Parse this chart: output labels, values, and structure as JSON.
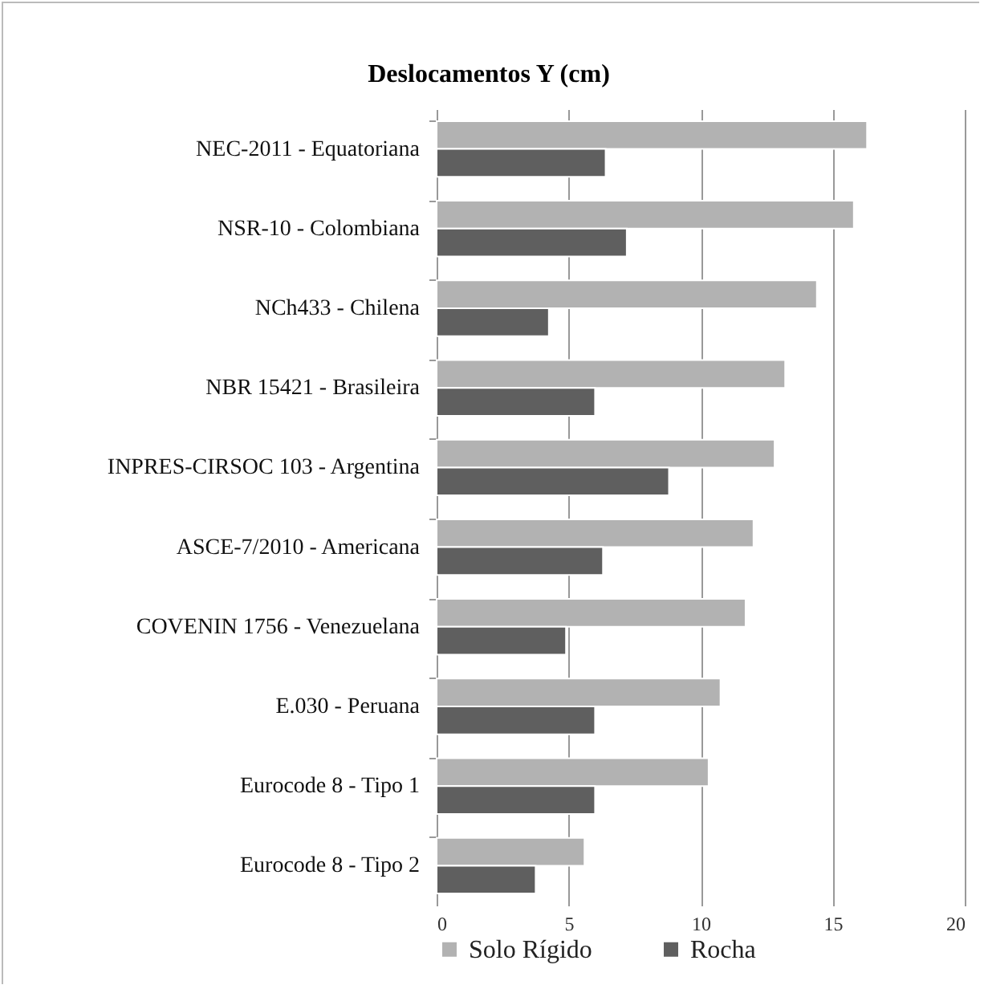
{
  "chart_data": {
    "type": "bar",
    "orientation": "horizontal",
    "title": "Deslocamentos Y (cm)",
    "categories": [
      "NEC-2011 - Equatoriana",
      "NSR-10 - Colombiana",
      "NCh433 - Chilena",
      "NBR 15421 - Brasileira",
      "INPRES-CIRSOC 103 - Argentina",
      "ASCE-7/2010 - Americana",
      "COVENIN 1756 - Venezuelana",
      "E.030 - Peruana",
      "Eurocode 8 - Tipo 1",
      "Eurocode 8 - Tipo 2"
    ],
    "series": [
      {
        "name": "Solo Rígido",
        "color": "#b2b2b2",
        "values": [
          16.3,
          15.8,
          14.4,
          13.2,
          12.8,
          12.0,
          11.7,
          10.75,
          10.3,
          5.6
        ]
      },
      {
        "name": "Rocha",
        "color": "#5f5f5f",
        "values": [
          6.4,
          7.2,
          4.25,
          6.0,
          8.8,
          6.3,
          4.9,
          6.0,
          6.0,
          3.75
        ]
      }
    ],
    "xlim": [
      0,
      20
    ],
    "xticks": [
      0,
      5,
      10,
      15,
      20
    ],
    "grid": "x",
    "legend": "bottom"
  }
}
